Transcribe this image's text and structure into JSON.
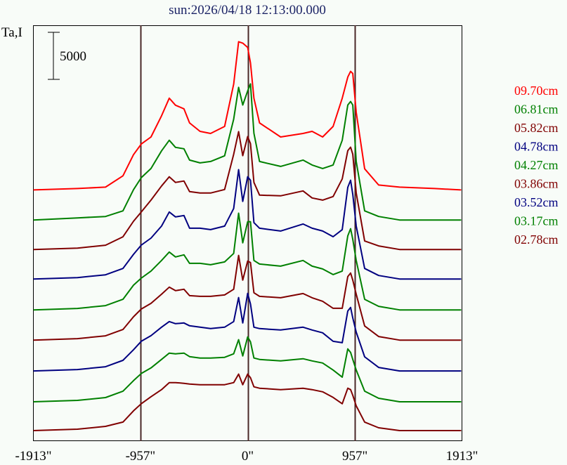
{
  "chart_data": {
    "type": "line",
    "title": "sun:2026/04/18 12:13:00.000",
    "ylabel": "Ta,I",
    "xlabel": "",
    "scale_bar": {
      "label": "5000",
      "value": 5000
    },
    "xlim": [
      -1913,
      1913
    ],
    "x_ticks": [
      {
        "value": -1913,
        "label": "-1913\""
      },
      {
        "value": -957,
        "label": "-957\""
      },
      {
        "value": 0,
        "label": "0\""
      },
      {
        "value": 957,
        "label": "957\""
      },
      {
        "value": 1913,
        "label": "1913\""
      }
    ],
    "reference_lines": [
      -957,
      0,
      957
    ],
    "ylim": [
      0,
      44200
    ],
    "legend_placement": "right",
    "x": [
      -1913,
      -1519,
      -1269,
      -1113,
      -1019,
      -950,
      -863,
      -769,
      -700,
      -644,
      -569,
      -519,
      -425,
      -331,
      -206,
      -125,
      -81,
      -44,
      0,
      25,
      56,
      106,
      294,
      494,
      575,
      669,
      763,
      844,
      894,
      919,
      938,
      969,
      1044,
      1169,
      1356,
      1669,
      1906
    ],
    "series": [
      {
        "name": "09.70cm",
        "color": "#ff0000",
        "offset": 26700,
        "values": [
          0,
          150,
          300,
          1500,
          3750,
          4875,
          5625,
          7875,
          9750,
          9000,
          8625,
          7125,
          6225,
          6000,
          6750,
          11250,
          15750,
          15600,
          15150,
          13500,
          9750,
          7125,
          5625,
          6000,
          6225,
          5625,
          6750,
          9750,
          12000,
          12600,
          12375,
          8250,
          2250,
          525,
          300,
          150,
          0
        ]
      },
      {
        "name": "06.81cm",
        "color": "#008000",
        "offset": 23500,
        "values": [
          0,
          225,
          375,
          975,
          3225,
          4500,
          5475,
          7350,
          8475,
          7725,
          7575,
          6375,
          6075,
          6225,
          6825,
          10725,
          14100,
          12225,
          13725,
          14475,
          9225,
          6225,
          5700,
          6375,
          5850,
          5475,
          5850,
          8475,
          12225,
          12600,
          12225,
          6225,
          975,
          375,
          0,
          0,
          0
        ]
      },
      {
        "name": "05.82cm",
        "color": "#800000",
        "offset": 20370,
        "values": [
          0,
          150,
          450,
          1350,
          3000,
          3975,
          5250,
          6750,
          7725,
          7125,
          7275,
          6150,
          6000,
          6000,
          6375,
          10125,
          12525,
          9975,
          12000,
          11250,
          7125,
          5775,
          5700,
          6225,
          5475,
          5250,
          5625,
          7500,
          10500,
          10875,
          10125,
          6000,
          900,
          375,
          0,
          0,
          0
        ]
      },
      {
        "name": "04.78cm",
        "color": "#000080",
        "offset": 17230,
        "values": [
          0,
          150,
          450,
          1125,
          2625,
          3600,
          4350,
          5625,
          7125,
          6600,
          6750,
          5400,
          5400,
          5250,
          5625,
          7500,
          11625,
          8250,
          10875,
          10500,
          6000,
          5400,
          5100,
          5850,
          5400,
          5100,
          4500,
          5250,
          9750,
          10500,
          9000,
          5625,
          1125,
          375,
          0,
          0,
          0
        ]
      },
      {
        "name": "04.27cm",
        "color": "#008000",
        "offset": 13950,
        "values": [
          0,
          150,
          450,
          1125,
          2625,
          3375,
          4125,
          5250,
          6150,
          5625,
          5850,
          4950,
          4950,
          4800,
          5100,
          6000,
          10275,
          7125,
          9375,
          9375,
          5250,
          4875,
          4650,
          5250,
          4650,
          4350,
          3750,
          4125,
          7875,
          8625,
          7500,
          5250,
          1125,
          375,
          0,
          0,
          0
        ]
      },
      {
        "name": "03.86cm",
        "color": "#800000",
        "offset": 10740,
        "values": [
          0,
          150,
          450,
          1125,
          2475,
          3300,
          3900,
          4875,
          5625,
          5250,
          5400,
          4725,
          4650,
          4650,
          4800,
          5400,
          9000,
          6375,
          8400,
          8250,
          5025,
          4650,
          4500,
          4950,
          4500,
          4125,
          3375,
          3375,
          6750,
          7125,
          6375,
          4875,
          1500,
          375,
          0,
          0,
          0
        ]
      },
      {
        "name": "03.52cm",
        "color": "#000080",
        "offset": 7460,
        "values": [
          0,
          150,
          450,
          1125,
          2250,
          3150,
          3750,
          4650,
          5250,
          5025,
          5100,
          4800,
          4650,
          4500,
          4650,
          5250,
          7800,
          5100,
          8250,
          7125,
          4650,
          4500,
          4350,
          4650,
          4350,
          4050,
          3150,
          3000,
          6375,
          6750,
          5625,
          4125,
          1500,
          375,
          0,
          0,
          0
        ]
      },
      {
        "name": "03.17cm",
        "color": "#008000",
        "offset": 4180,
        "values": [
          0,
          150,
          450,
          1125,
          2250,
          3000,
          3600,
          4500,
          5175,
          5100,
          5175,
          4800,
          4650,
          4650,
          4725,
          5100,
          6600,
          4875,
          6900,
          6375,
          4650,
          4500,
          4350,
          4575,
          4350,
          4125,
          3375,
          2625,
          5625,
          5250,
          4500,
          3375,
          1125,
          375,
          0,
          0,
          0
        ]
      },
      {
        "name": "02.78cm",
        "color": "#800000",
        "offset": 1120,
        "values": [
          0,
          150,
          450,
          900,
          2100,
          2850,
          3600,
          4350,
          5100,
          5100,
          5025,
          4950,
          4875,
          4875,
          4875,
          5100,
          6000,
          4875,
          6000,
          5625,
          4650,
          4500,
          4350,
          4500,
          4350,
          4125,
          3525,
          2850,
          4500,
          4350,
          3750,
          2625,
          900,
          300,
          0,
          0,
          0
        ]
      }
    ]
  },
  "colors": {
    "title": "#1c2466",
    "reference_line": "#4a2828",
    "frame": "#000000"
  }
}
